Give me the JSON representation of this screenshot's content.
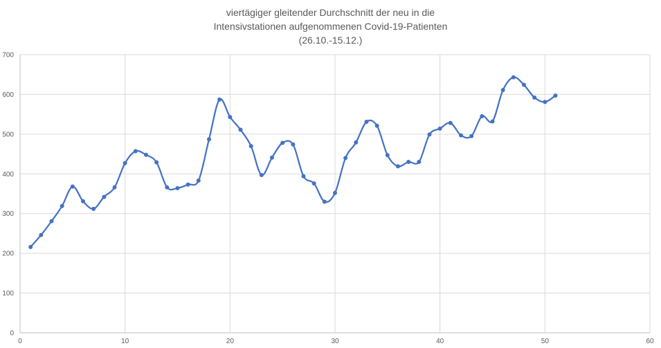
{
  "chart_data": {
    "type": "line",
    "title_lines": [
      "viertägiger gleitender Durchschnitt der neu in die",
      "Intensivstationen aufgenommenen Covid-19-Patienten",
      "(26.10.-15.12.)"
    ],
    "xlabel": "",
    "ylabel": "",
    "xlim": [
      0,
      60
    ],
    "ylim": [
      0,
      700
    ],
    "x_ticks": [
      0,
      10,
      20,
      30,
      40,
      50,
      60
    ],
    "y_ticks": [
      0,
      100,
      200,
      300,
      400,
      500,
      600,
      700
    ],
    "grid": true,
    "legend": "none",
    "line_color": "#4472C4",
    "grid_color": "#d9d9d9",
    "series": [
      {
        "x": [
          1,
          2,
          3,
          4,
          5,
          6,
          7,
          8,
          9,
          10,
          11,
          12,
          13,
          14,
          15,
          16,
          17,
          18,
          19,
          20,
          21,
          22,
          23,
          24,
          25,
          26,
          27,
          28,
          29,
          30,
          31,
          32,
          33,
          34,
          35,
          36,
          37,
          38,
          39,
          40,
          41,
          42,
          43,
          44,
          45,
          46,
          47,
          48,
          49,
          50,
          51
        ],
        "values": [
          216,
          246,
          281,
          319,
          368,
          331,
          312,
          342,
          366,
          427,
          457,
          448,
          429,
          366,
          364,
          373,
          383,
          487,
          587,
          543,
          511,
          470,
          397,
          441,
          478,
          474,
          394,
          376,
          330,
          352,
          440,
          479,
          531,
          521,
          447,
          419,
          430,
          430,
          499,
          514,
          528,
          497,
          495,
          545,
          532,
          611,
          643,
          624,
          592,
          581,
          597
        ]
      }
    ]
  }
}
